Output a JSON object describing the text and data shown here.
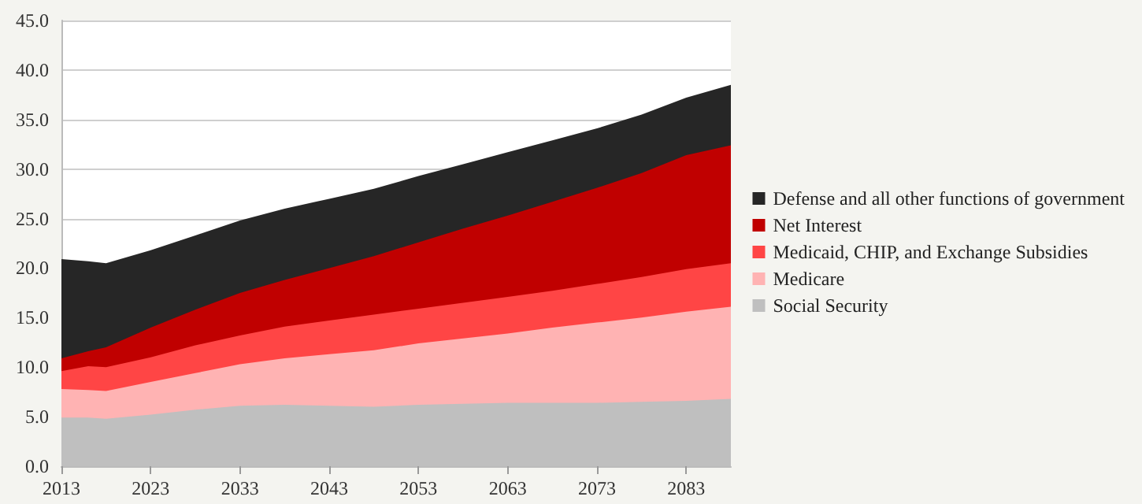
{
  "chart_data": {
    "type": "area",
    "stacked": true,
    "x": [
      2013,
      2016,
      2018,
      2023,
      2028,
      2033,
      2038,
      2043,
      2048,
      2053,
      2058,
      2063,
      2068,
      2073,
      2078,
      2083,
      2088
    ],
    "series": [
      {
        "name": "Social Security",
        "color": "#bfbfbf",
        "values": [
          4.9,
          4.9,
          4.8,
          5.2,
          5.7,
          6.1,
          6.2,
          6.1,
          6.0,
          6.2,
          6.3,
          6.4,
          6.4,
          6.4,
          6.5,
          6.6,
          6.8
        ]
      },
      {
        "name": "Medicare",
        "color": "#ffb3b3",
        "values": [
          2.9,
          2.8,
          2.8,
          3.3,
          3.7,
          4.2,
          4.7,
          5.2,
          5.7,
          6.2,
          6.6,
          7.0,
          7.6,
          8.1,
          8.5,
          9.0,
          9.3
        ]
      },
      {
        "name": "Medicaid, CHIP, and Exchange Subsidies",
        "color": "#ff4545",
        "values": [
          1.8,
          2.4,
          2.4,
          2.5,
          2.8,
          2.9,
          3.2,
          3.4,
          3.6,
          3.5,
          3.6,
          3.7,
          3.7,
          3.9,
          4.1,
          4.3,
          4.4
        ]
      },
      {
        "name": "Net Interest",
        "color": "#c00000",
        "values": [
          1.3,
          1.5,
          2.0,
          3.0,
          3.6,
          4.3,
          4.7,
          5.3,
          5.9,
          6.7,
          7.5,
          8.2,
          9.0,
          9.7,
          10.5,
          11.5,
          11.9
        ]
      },
      {
        "name": "Defense and all other functions of government",
        "color": "#262626",
        "values": [
          10.0,
          9.1,
          8.5,
          7.8,
          7.5,
          7.3,
          7.2,
          7.0,
          6.8,
          6.7,
          6.5,
          6.4,
          6.2,
          6.0,
          5.9,
          5.8,
          6.1
        ]
      }
    ],
    "xlim": [
      2013,
      2088
    ],
    "xticks": [
      2013,
      2023,
      2033,
      2043,
      2053,
      2063,
      2073,
      2083
    ],
    "ylim": [
      0,
      45
    ],
    "yticks": [
      {
        "value": 0,
        "label": "0.0"
      },
      {
        "value": 5,
        "label": "5.0"
      },
      {
        "value": 10,
        "label": "10.0"
      },
      {
        "value": 15,
        "label": "15.0"
      },
      {
        "value": 20,
        "label": "20.0"
      },
      {
        "value": 25,
        "label": "25.0"
      },
      {
        "value": 30,
        "label": "30.0"
      },
      {
        "value": 35,
        "label": "35.0"
      },
      {
        "value": 40,
        "label": "40.0"
      },
      {
        "value": 45,
        "label": "45.0"
      }
    ],
    "grid": "y",
    "legend": "right"
  }
}
